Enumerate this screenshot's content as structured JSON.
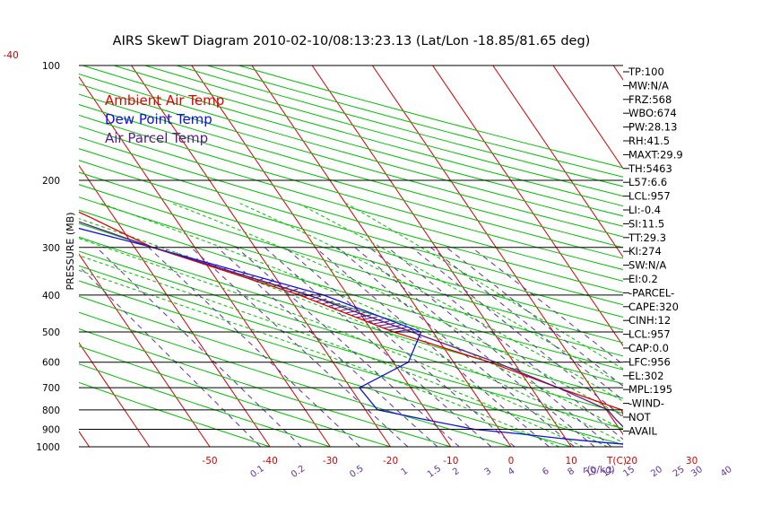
{
  "chart_data": {
    "type": "line",
    "title": "AIRS SkewT Diagram 2010-02-10/08:13:23.13 (Lat/Lon -18.85/81.65 deg)",
    "ylabel": "PRESSURE (MB)",
    "xlabel": "T(C)",
    "mixing_ratio_unit": "r(g/kg)",
    "y_scale": "log",
    "ylim": [
      1000,
      100
    ],
    "xlim": [
      -50,
      40
    ],
    "top_xlim": [
      -120,
      -40
    ],
    "pressure_ticks": [
      "100",
      "200",
      "300",
      "400",
      "500",
      "600",
      "700",
      "800",
      "900",
      "1000"
    ],
    "top_temp_ticks": [
      "-120",
      "-110",
      "-100",
      "-90",
      "-80",
      "-70",
      "-60",
      "-50",
      "-40"
    ],
    "bottom_temp_ticks": [
      "-50",
      "-40",
      "-30",
      "-20",
      "-10",
      "0",
      "10",
      "20",
      "30"
    ],
    "mixing_ratio_ticks": [
      "0.1",
      "0.2",
      "0.5",
      "1",
      "1.5",
      "2",
      "3",
      "4",
      "6",
      "8",
      "10",
      "12",
      "15",
      "20",
      "25",
      "30",
      "40"
    ],
    "grid": true,
    "legend_position": "top-left",
    "legend": [
      {
        "label": "Ambient Air Temp",
        "color": "#e00000"
      },
      {
        "label": "Dew Point Temp",
        "color": "#1010e0"
      },
      {
        "label": "Air Parcel Temp",
        "color": "#5a1a8a"
      }
    ],
    "series": [
      {
        "name": "Ambient Air Temp",
        "color": "#e00000",
        "points": [
          [
            1000,
            27.0
          ],
          [
            975,
            24.5
          ],
          [
            950,
            21.5
          ],
          [
            925,
            20.5
          ],
          [
            900,
            21.5
          ],
          [
            850,
            22.0
          ],
          [
            800,
            22.5
          ],
          [
            700,
            14.5
          ],
          [
            600,
            6.0
          ],
          [
            500,
            -6.5
          ],
          [
            400,
            -18.0
          ],
          [
            300,
            -37.0
          ],
          [
            250,
            -44.0
          ],
          [
            200,
            -53.0
          ],
          [
            170,
            -61.0
          ],
          [
            150,
            -78.5
          ],
          [
            100,
            -78.5
          ]
        ]
      },
      {
        "name": "Dew Point Temp",
        "color": "#1010e0",
        "points": [
          [
            1000,
            24.5
          ],
          [
            975,
            16.0
          ],
          [
            950,
            9.0
          ],
          [
            925,
            3.0
          ],
          [
            900,
            -4.0
          ],
          [
            850,
            -11.0
          ],
          [
            800,
            -18.0
          ],
          [
            700,
            -18.5
          ],
          [
            600,
            -7.5
          ],
          [
            500,
            -2.0
          ],
          [
            400,
            -14.0
          ],
          [
            300,
            -37.0
          ],
          [
            250,
            -53.0
          ],
          [
            200,
            -68.0
          ],
          [
            170,
            -79.0
          ],
          [
            150,
            -90.0
          ],
          [
            100,
            -90.0
          ]
        ]
      },
      {
        "name": "Air Parcel Temp",
        "color": "#5a1a8a",
        "points": [
          [
            1000,
            27.0
          ],
          [
            950,
            22.5
          ],
          [
            900,
            21.0
          ],
          [
            850,
            20.5
          ],
          [
            800,
            20.2
          ],
          [
            700,
            14.5
          ],
          [
            600,
            7.0
          ],
          [
            500,
            -3.5
          ],
          [
            400,
            -16.5
          ],
          [
            300,
            -37.0
          ],
          [
            250,
            -48.0
          ],
          [
            200,
            -62.0
          ],
          [
            170,
            -72.0
          ]
        ]
      }
    ],
    "parcel_shading": {
      "color": "#5a1a8a",
      "pressure_range": [
        300,
        500
      ]
    },
    "indices": [
      "TP:100",
      "MW:N/A",
      "FRZ:568",
      "WBO:674",
      "PW:28.13",
      "RH:41.5",
      "MAXT:29.9",
      "TH:5463",
      "L57:6.6",
      "LCL:957",
      "LI:-0.4",
      "SI:11.5",
      "TT:29.3",
      "KI:274",
      "SW:N/A",
      "EI:0.2",
      "-PARCEL-",
      "CAPE:320",
      "CINH:12",
      "LCL:957",
      "CAP:0.0",
      "LFC:956",
      "EL:302",
      "MPL:195",
      "-WIND-",
      "NOT",
      "AVAIL"
    ],
    "colors": {
      "isotherm": "#d00000",
      "dry_adiabat": "#00c000",
      "moist_adiabat": "#00c000",
      "mixing_ratio": "#6030a0",
      "isobar": "#000000",
      "tick_text": "#d00000",
      "mixing_text": "#6030a0"
    }
  }
}
